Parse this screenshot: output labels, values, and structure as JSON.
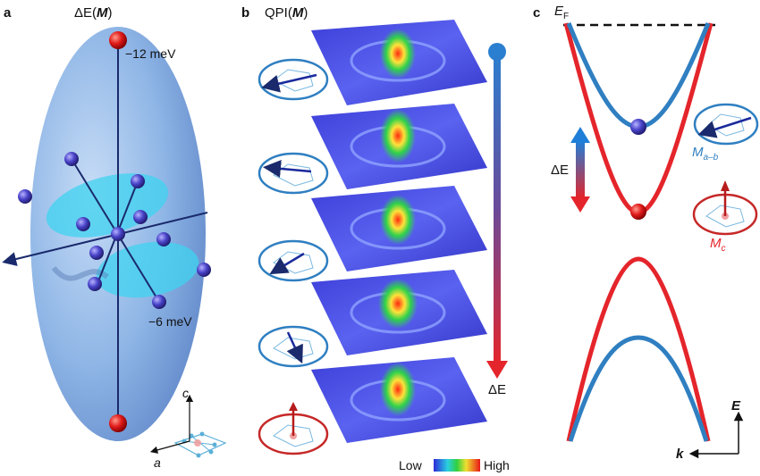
{
  "panels": {
    "a": {
      "letter": "a",
      "title_prefix": "ΔE(",
      "title_bold": "M",
      "title_suffix": ")",
      "label_top": "−12 meV",
      "label_mid": "−6 meV",
      "axis_c": "c",
      "axis_a": "a"
    },
    "b": {
      "letter": "b",
      "title_prefix": "QPI(",
      "title_bold": "M",
      "title_suffix": ")",
      "arrow_label": "ΔE",
      "legend_low": "Low",
      "legend_high": "High"
    },
    "c": {
      "letter": "c",
      "ef_label": "E",
      "ef_sub": "F",
      "delta_e_label": "ΔE",
      "m_ab_label": "M",
      "m_ab_sub": "a–b",
      "m_c_label": "M",
      "m_c_sub": "c",
      "axis_e": "E",
      "axis_k": "k"
    }
  },
  "colors": {
    "blue_band": "#2f7fc1",
    "red_band": "#e4252b",
    "ellipsoid": "#8fb6e6",
    "disk": "#3fd3f0",
    "atom_blue": "#4a44c9",
    "atom_red": "#d91c1c",
    "navy": "#1a2a6c"
  },
  "icons": [
    "moment-inplane-icon",
    "moment-outofplane-icon",
    "colorbar-icon"
  ]
}
